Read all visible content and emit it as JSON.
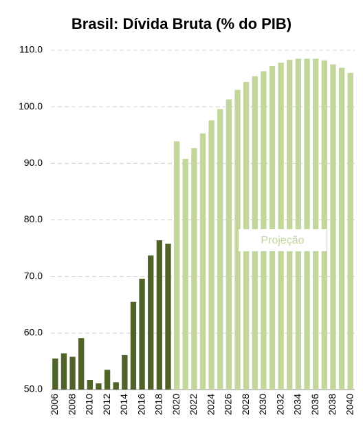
{
  "chart_data": {
    "type": "bar",
    "title": "Brasil: Dívida Bruta (% do PIB)",
    "categories": [
      "2006",
      null,
      "2008",
      null,
      "2010",
      null,
      "2012",
      null,
      "2014",
      null,
      "2016",
      null,
      "2018",
      null,
      "2020",
      null,
      "2022",
      null,
      "2024",
      null,
      "2026",
      null,
      "2028",
      null,
      "2030",
      null,
      "2032",
      null,
      "2034",
      null,
      "2036",
      null,
      "2038",
      null,
      "2040"
    ],
    "values": [
      55.5,
      56.4,
      55.8,
      59.1,
      51.7,
      51.1,
      53.5,
      51.3,
      56.1,
      65.5,
      69.6,
      73.7,
      76.4,
      75.8,
      93.9,
      90.8,
      92.7,
      95.3,
      97.6,
      99.6,
      101.3,
      103.0,
      104.4,
      105.4,
      106.3,
      107.2,
      107.8,
      108.3,
      108.5,
      108.5,
      108.5,
      108.2,
      107.5,
      106.9,
      106.0
    ],
    "colors": [
      "#4f6228",
      "#4f6228",
      "#4f6228",
      "#4f6228",
      "#4f6228",
      "#4f6228",
      "#4f6228",
      "#4f6228",
      "#4f6228",
      "#4f6228",
      "#4f6228",
      "#4f6228",
      "#4f6228",
      "#4f6228",
      "#c3d69b",
      "#c3d69b",
      "#c3d69b",
      "#c3d69b",
      "#c3d69b",
      "#c3d69b",
      "#c3d69b",
      "#c3d69b",
      "#c3d69b",
      "#c3d69b",
      "#c3d69b",
      "#c3d69b",
      "#c3d69b",
      "#c3d69b",
      "#c3d69b",
      "#c3d69b",
      "#c3d69b",
      "#c3d69b",
      "#c3d69b",
      "#c3d69b",
      "#c3d69b"
    ],
    "annotation": "Projeção",
    "ylim": [
      50,
      110
    ],
    "yticks": [
      {
        "value": 50,
        "label": "50.0"
      },
      {
        "value": 60,
        "label": "60.0"
      },
      {
        "value": 70,
        "label": "70.0"
      },
      {
        "value": 80,
        "label": "80.0"
      },
      {
        "value": 90,
        "label": "90.0"
      },
      {
        "value": 100,
        "label": "100.0"
      },
      {
        "value": 110,
        "label": "110.0"
      }
    ],
    "grid": true
  }
}
